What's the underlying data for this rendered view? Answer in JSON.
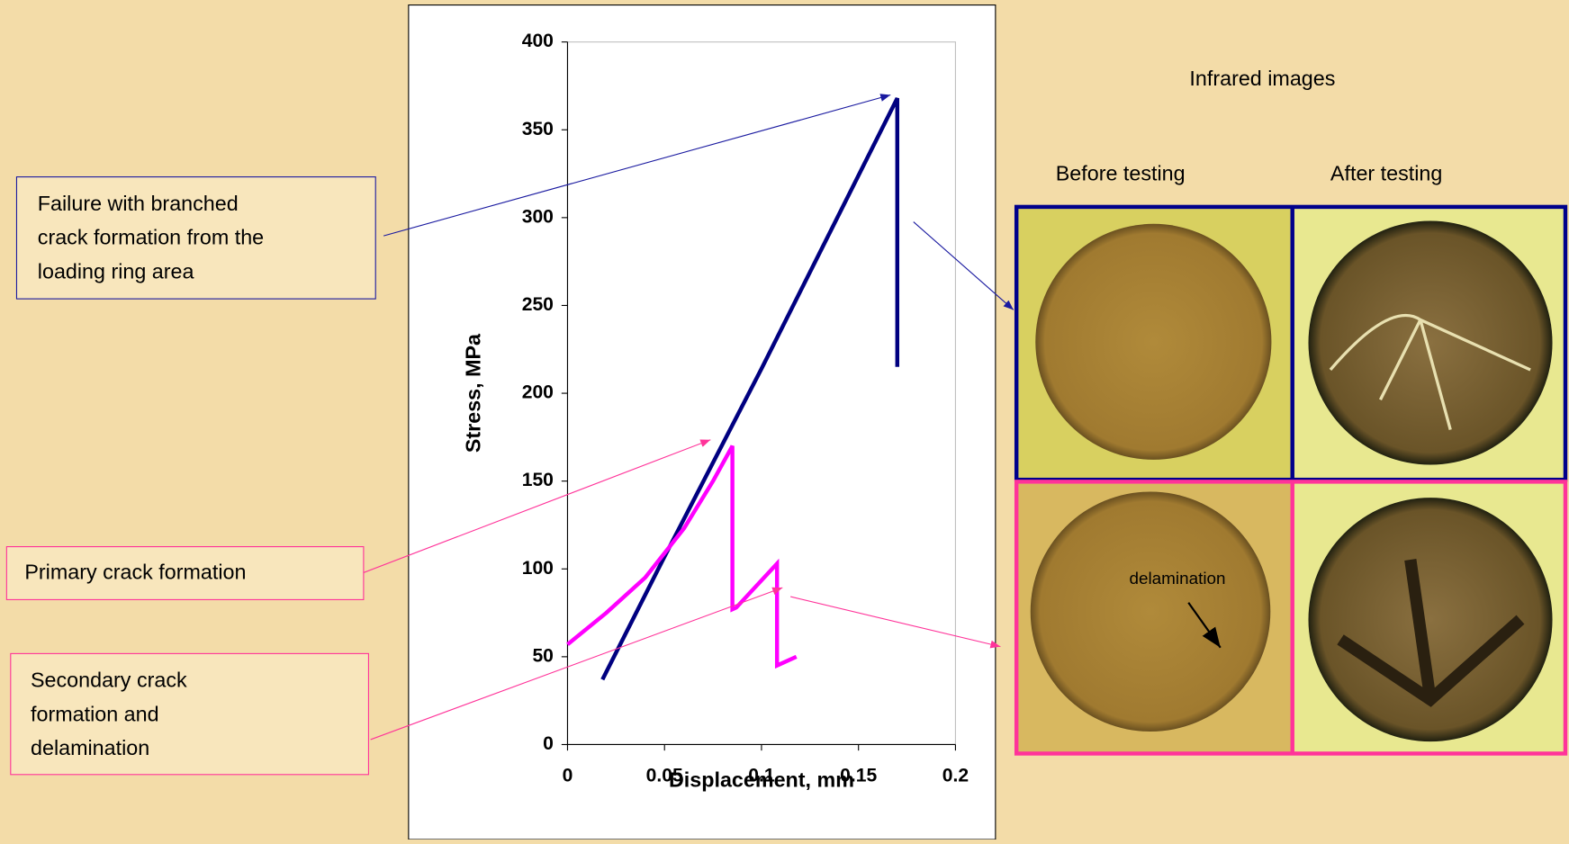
{
  "chart_data": {
    "type": "line",
    "x_label": "Displacement, mm",
    "y_label": "Stress, MPa",
    "xlim": [
      0,
      0.2
    ],
    "xticks": [
      0,
      0.05,
      {
        "value": 0.1,
        "label": "0.1"
      },
      0.15,
      {
        "value": 0.2,
        "label": "0.2"
      }
    ],
    "ylim": [
      0,
      400
    ],
    "yticks": [
      0,
      50,
      100,
      150,
      200,
      250,
      300,
      350,
      400
    ],
    "series": [
      {
        "color": "#000080",
        "x": [
          0.018,
          0.05,
          0.1,
          0.15,
          0.17,
          0.17
        ],
        "values": [
          37,
          107,
          214,
          324,
          368,
          215
        ]
      },
      {
        "color": "#ff00ff",
        "x": [
          0,
          0.02,
          0.04,
          0.06,
          0.075,
          0.085,
          0.085,
          0.087,
          0.108,
          0.108,
          0.11,
          0.118
        ],
        "values": [
          57,
          75,
          95,
          123,
          150,
          170,
          77,
          78,
          103,
          45,
          46,
          50
        ]
      }
    ]
  },
  "annotations": [
    {
      "lines": [
        "Failure with branched",
        "crack formation from the",
        "loading ring area"
      ]
    },
    {
      "lines": [
        "Primary crack formation"
      ]
    },
    {
      "lines": [
        "Secondary crack",
        "formation and",
        "delamination"
      ]
    }
  ],
  "images": {
    "title": "Infrared images",
    "columns": [
      "Before testing",
      "After testing"
    ],
    "label": "delamination"
  }
}
